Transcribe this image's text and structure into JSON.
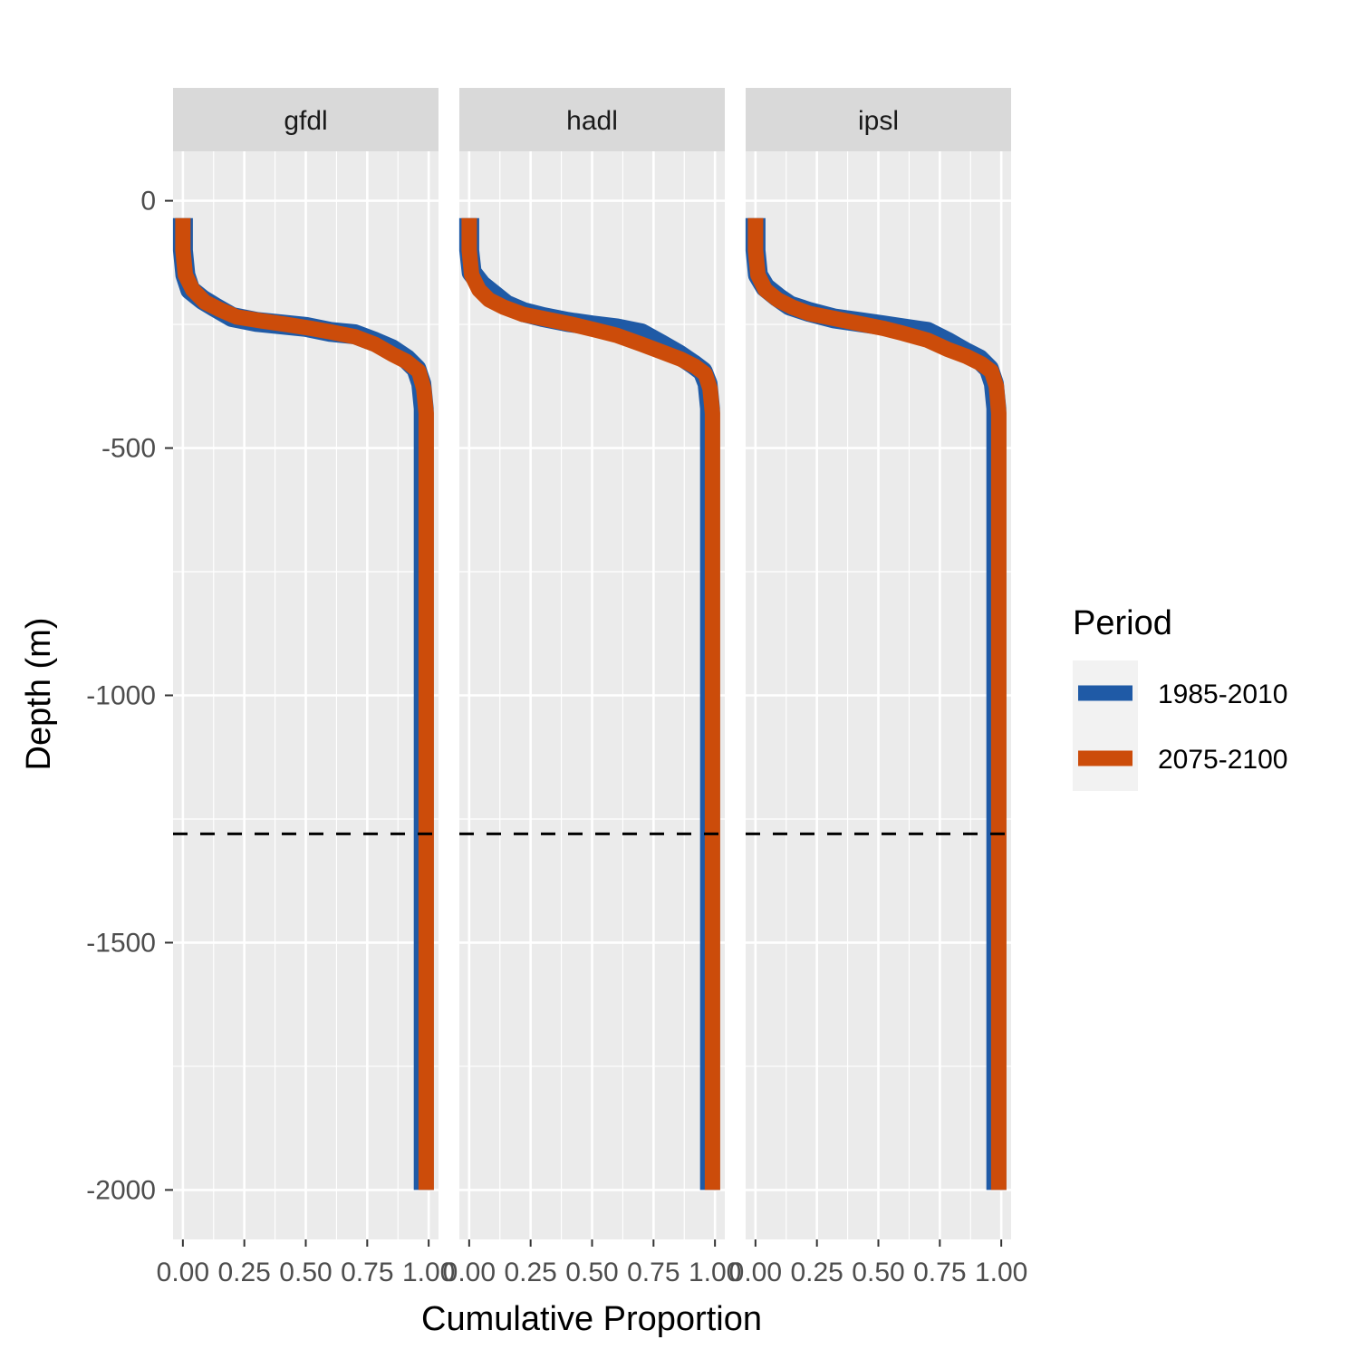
{
  "chart_data": {
    "type": "line",
    "facets": [
      "gfdl",
      "hadl",
      "ipsl"
    ],
    "xlabel": "Cumulative Proportion",
    "ylabel": "Depth (m)",
    "xlim": [
      -0.04,
      1.04
    ],
    "ylim": [
      -2100,
      100
    ],
    "x_ticks": [
      0.0,
      0.25,
      0.5,
      0.75,
      1.0
    ],
    "x_tick_labels": [
      "0.00",
      "0.25",
      "0.50",
      "0.75",
      "1.00"
    ],
    "y_ticks": [
      0,
      -500,
      -1000,
      -1500,
      -2000
    ],
    "y_tick_labels": [
      "0",
      "-500",
      "-1000",
      "-1500",
      "-2000"
    ],
    "grid": true,
    "reference_line": {
      "depth": -1280,
      "style": "dashed",
      "color": "#000000"
    },
    "legend": {
      "title": "Period",
      "position": "right",
      "entries": [
        {
          "label": "1985-2010",
          "color": "#1F5AA6"
        },
        {
          "label": "2075-2100",
          "color": "#CC4C0A"
        }
      ]
    },
    "panels": [
      {
        "facet": "gfdl",
        "series": [
          {
            "name": "1985-2010",
            "color": "#1F5AA6",
            "points": [
              [
                0.0,
                -35
              ],
              [
                0.0,
                -100
              ],
              [
                0.01,
                -150
              ],
              [
                0.03,
                -180
              ],
              [
                0.08,
                -200
              ],
              [
                0.13,
                -215
              ],
              [
                0.2,
                -235
              ],
              [
                0.3,
                -245
              ],
              [
                0.4,
                -250
              ],
              [
                0.5,
                -255
              ],
              [
                0.6,
                -265
              ],
              [
                0.7,
                -270
              ],
              [
                0.78,
                -285
              ],
              [
                0.85,
                -300
              ],
              [
                0.91,
                -320
              ],
              [
                0.95,
                -340
              ],
              [
                0.97,
                -370
              ],
              [
                0.98,
                -420
              ],
              [
                0.98,
                -550
              ],
              [
                0.98,
                -2000
              ]
            ]
          },
          {
            "name": "2075-2100",
            "color": "#CC4C0A",
            "points": [
              [
                0.0,
                -35
              ],
              [
                0.0,
                -100
              ],
              [
                0.01,
                -150
              ],
              [
                0.04,
                -180
              ],
              [
                0.09,
                -205
              ],
              [
                0.15,
                -220
              ],
              [
                0.22,
                -235
              ],
              [
                0.32,
                -243
              ],
              [
                0.42,
                -250
              ],
              [
                0.52,
                -258
              ],
              [
                0.6,
                -265
              ],
              [
                0.7,
                -275
              ],
              [
                0.78,
                -290
              ],
              [
                0.85,
                -310
              ],
              [
                0.91,
                -325
              ],
              [
                0.96,
                -345
              ],
              [
                0.98,
                -380
              ],
              [
                0.99,
                -430
              ],
              [
                0.99,
                -550
              ],
              [
                0.99,
                -2000
              ]
            ]
          }
        ]
      },
      {
        "facet": "hadl",
        "series": [
          {
            "name": "1985-2010",
            "color": "#1F5AA6",
            "points": [
              [
                0.0,
                -35
              ],
              [
                0.0,
                -100
              ],
              [
                0.01,
                -145
              ],
              [
                0.05,
                -170
              ],
              [
                0.1,
                -190
              ],
              [
                0.15,
                -210
              ],
              [
                0.22,
                -225
              ],
              [
                0.3,
                -235
              ],
              [
                0.4,
                -245
              ],
              [
                0.5,
                -252
              ],
              [
                0.6,
                -258
              ],
              [
                0.7,
                -268
              ],
              [
                0.78,
                -290
              ],
              [
                0.85,
                -310
              ],
              [
                0.91,
                -330
              ],
              [
                0.95,
                -345
              ],
              [
                0.97,
                -370
              ],
              [
                0.98,
                -420
              ],
              [
                0.98,
                -550
              ],
              [
                0.98,
                -2000
              ]
            ]
          },
          {
            "name": "2075-2100",
            "color": "#CC4C0A",
            "points": [
              [
                0.0,
                -35
              ],
              [
                0.0,
                -100
              ],
              [
                0.01,
                -150
              ],
              [
                0.04,
                -180
              ],
              [
                0.08,
                -200
              ],
              [
                0.14,
                -215
              ],
              [
                0.22,
                -230
              ],
              [
                0.32,
                -240
              ],
              [
                0.42,
                -250
              ],
              [
                0.52,
                -262
              ],
              [
                0.6,
                -272
              ],
              [
                0.7,
                -290
              ],
              [
                0.78,
                -305
              ],
              [
                0.86,
                -320
              ],
              [
                0.92,
                -335
              ],
              [
                0.96,
                -350
              ],
              [
                0.98,
                -380
              ],
              [
                0.99,
                -430
              ],
              [
                0.99,
                -550
              ],
              [
                0.99,
                -2000
              ]
            ]
          }
        ]
      },
      {
        "facet": "ipsl",
        "series": [
          {
            "name": "1985-2010",
            "color": "#1F5AA6",
            "points": [
              [
                0.0,
                -35
              ],
              [
                0.0,
                -100
              ],
              [
                0.01,
                -150
              ],
              [
                0.04,
                -175
              ],
              [
                0.09,
                -195
              ],
              [
                0.14,
                -212
              ],
              [
                0.22,
                -225
              ],
              [
                0.32,
                -238
              ],
              [
                0.42,
                -245
              ],
              [
                0.52,
                -252
              ],
              [
                0.6,
                -258
              ],
              [
                0.7,
                -265
              ],
              [
                0.78,
                -285
              ],
              [
                0.85,
                -305
              ],
              [
                0.91,
                -320
              ],
              [
                0.95,
                -340
              ],
              [
                0.97,
                -370
              ],
              [
                0.98,
                -420
              ],
              [
                0.98,
                -550
              ],
              [
                0.98,
                -2000
              ]
            ]
          },
          {
            "name": "2075-2100",
            "color": "#CC4C0A",
            "points": [
              [
                0.0,
                -35
              ],
              [
                0.0,
                -100
              ],
              [
                0.01,
                -150
              ],
              [
                0.04,
                -180
              ],
              [
                0.09,
                -200
              ],
              [
                0.15,
                -215
              ],
              [
                0.22,
                -228
              ],
              [
                0.32,
                -238
              ],
              [
                0.42,
                -248
              ],
              [
                0.52,
                -258
              ],
              [
                0.6,
                -268
              ],
              [
                0.7,
                -282
              ],
              [
                0.78,
                -300
              ],
              [
                0.86,
                -315
              ],
              [
                0.92,
                -330
              ],
              [
                0.96,
                -345
              ],
              [
                0.98,
                -375
              ],
              [
                0.99,
                -430
              ],
              [
                0.99,
                -550
              ],
              [
                0.99,
                -2000
              ]
            ]
          }
        ]
      }
    ]
  }
}
